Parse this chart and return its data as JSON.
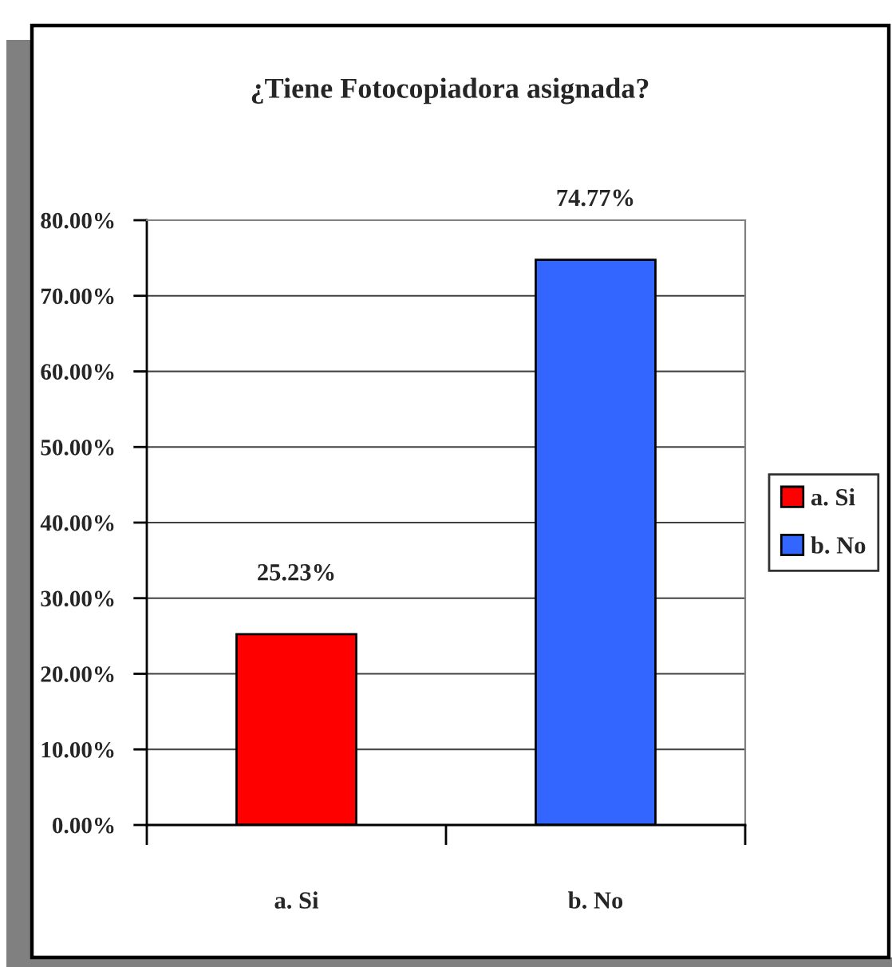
{
  "chart_data": {
    "type": "bar",
    "title": "¿Tiene Fotocopiadora asignada?",
    "categories": [
      "a. Si",
      "b. No"
    ],
    "series": [
      {
        "name": "a. Si",
        "color": "#ff0000",
        "values": [
          25.23,
          null
        ],
        "value_labels": [
          "25.23%",
          null
        ]
      },
      {
        "name": "b. No",
        "color": "#3366ff",
        "values": [
          null,
          74.77
        ],
        "value_labels": [
          null,
          "74.77%"
        ]
      }
    ],
    "ylim": [
      0,
      80
    ],
    "yticks": [
      {
        "value": 0,
        "label": "0.00%"
      },
      {
        "value": 10,
        "label": "10.00%"
      },
      {
        "value": 20,
        "label": "20.00%"
      },
      {
        "value": 30,
        "label": "30.00%"
      },
      {
        "value": 40,
        "label": "40.00%"
      },
      {
        "value": 50,
        "label": "50.00%"
      },
      {
        "value": 60,
        "label": "60.00%"
      },
      {
        "value": 70,
        "label": "70.00%"
      },
      {
        "value": 80,
        "label": "80.00%"
      }
    ],
    "grid": "y",
    "legend": "right"
  }
}
